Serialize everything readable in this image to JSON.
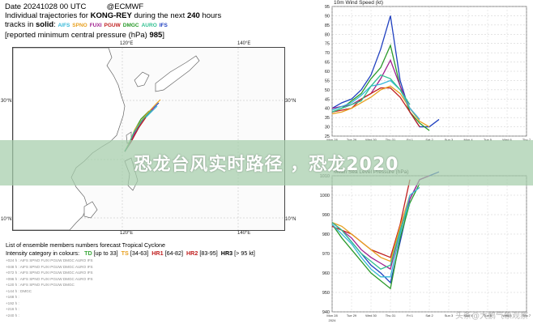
{
  "header": {
    "line1": "Date 20241028 00 UTC",
    "line1_org": "@ECMWF",
    "line2_prefix": "Individual trajectories for",
    "line2_storm": "KONG-REY",
    "line2_mid": "during the next",
    "line2_hours": "240",
    "line2_suffix": "hours",
    "line3_prefix": "tracks in",
    "line3_solid": "solid",
    "line3_suffix": ":",
    "models": [
      {
        "name": "AIFS",
        "color": "#36b8d8"
      },
      {
        "name": "SPNO",
        "color": "#e8a020"
      },
      {
        "name": "FUXI",
        "color": "#a0208f"
      },
      {
        "name": "PGUW",
        "color": "#c02020"
      },
      {
        "name": "DMGC",
        "color": "#2a9a2a"
      },
      {
        "name": "AURO",
        "color": "#30c090"
      },
      {
        "name": "IFS",
        "color": "#2040c0"
      }
    ],
    "line4_prefix": "[reported minimum central pressure (hPa)",
    "line4_value": "985",
    "line4_suffix": "]"
  },
  "map": {
    "lon_labels": [
      "120°E",
      "140°E",
      "120°E",
      "140°E"
    ],
    "lat_labels": [
      "30°N",
      "10°N",
      "30°N",
      "10°N"
    ],
    "colors": {
      "land": "#ffffff",
      "coast": "#666666",
      "grid": "#aaaaaa"
    }
  },
  "footer": {
    "line1": "List of ensemble members numbers forecast Tropical Cyclone",
    "line2_prefix": "Intensity category in colours:",
    "categories": [
      {
        "label": "TD",
        "range": "[up to 33]",
        "color": "#3aa83a"
      },
      {
        "label": "TS",
        "range": "[34-63]",
        "color": "#e8a020"
      },
      {
        "label": "HR1",
        "range": "[64-82]",
        "color": "#c02020"
      },
      {
        "label": "HR2",
        "range": "[83-95]",
        "color": "#c02020"
      },
      {
        "label": "HR3",
        "range": "[> 95 kt]",
        "color": "#000000"
      }
    ],
    "legend_rows": [
      "+024 h : AIFS SPNO FUXI PGUW DMGC AURO IFS",
      "+048 h : AIFS SPNO FUXI PGUW DMGC AURO IFS",
      "+072 h : AIFS SPNO FUXI PGUW DMGC AURO IFS",
      "+096 h : AIFS SPNO FUXI PGUW DMGC AURO IFS",
      "+120 h : AIFS SPNO FUXI PGUW DMGC",
      "+144 h : DMGC",
      "+168 h :",
      "+192 h :",
      "+216 h :",
      "+240 h :"
    ]
  },
  "banner": {
    "text": "恐龙台风实时路径 ，恐龙2020"
  },
  "watermark": {
    "text": "头条@大鹏气象观察"
  },
  "chart_data": [
    {
      "type": "line",
      "title": "10m Wind Speed (kt)",
      "ylim": [
        25,
        95
      ],
      "yticks": [
        25,
        30,
        35,
        40,
        45,
        50,
        55,
        60,
        65,
        70,
        75,
        80,
        85,
        90,
        95
      ],
      "xlim": [
        0,
        10
      ],
      "xticks": [
        "Mon 28",
        "Tue 29",
        "Wed 30",
        "Thu 31",
        "Fri 1",
        "Sat 2",
        "Sun 3",
        "Mon 4",
        "Tue 5",
        "Wed 6",
        "Thu 7"
      ],
      "series": [
        {
          "color": "#2040c0",
          "x": [
            0,
            0.5,
            1,
            1.5,
            2,
            2.5,
            3,
            3.5,
            4,
            4.5,
            5,
            5.5
          ],
          "y": [
            40,
            43,
            45,
            50,
            58,
            72,
            90,
            55,
            38,
            30,
            30,
            34
          ]
        },
        {
          "color": "#2a9a2a",
          "x": [
            0,
            0.5,
            1,
            1.5,
            2,
            2.5,
            3,
            3.5,
            4,
            4.5,
            5
          ],
          "y": [
            38,
            40,
            44,
            48,
            56,
            62,
            74,
            52,
            38,
            32,
            28
          ]
        },
        {
          "color": "#a0208f",
          "x": [
            0,
            0.5,
            1,
            1.5,
            2,
            2.5,
            3,
            3.5,
            4,
            4.5
          ],
          "y": [
            40,
            41,
            42,
            45,
            48,
            56,
            66,
            52,
            40,
            34
          ]
        },
        {
          "color": "#c02020",
          "x": [
            0,
            0.5,
            1,
            1.5,
            2,
            2.5,
            3,
            3.5,
            4,
            4.5
          ],
          "y": [
            38,
            39,
            40,
            45,
            48,
            51,
            51,
            46,
            38,
            30
          ]
        },
        {
          "color": "#e8a020",
          "x": [
            0,
            0.5,
            1,
            1.5,
            2,
            2.5,
            3,
            3.5,
            4,
            4.5,
            5
          ],
          "y": [
            37,
            38,
            40,
            43,
            46,
            50,
            52,
            48,
            40,
            33,
            30
          ]
        },
        {
          "color": "#36b8d8",
          "x": [
            0,
            0.5,
            1,
            1.5,
            2,
            2.5,
            3,
            3.5,
            4,
            4.5
          ],
          "y": [
            39,
            41,
            43,
            47,
            52,
            53,
            55,
            50,
            40,
            34
          ]
        },
        {
          "color": "#30c090",
          "x": [
            0,
            0.5,
            1,
            1.5,
            2,
            2.5,
            3,
            3.5,
            4
          ],
          "y": [
            38,
            40,
            42,
            44,
            52,
            58,
            56,
            50,
            42
          ]
        }
      ]
    },
    {
      "type": "line",
      "title": "Mean Sea Level Pressure (hPa)",
      "ylim": [
        940,
        1010
      ],
      "yticks": [
        940,
        950,
        960,
        970,
        980,
        990,
        1000,
        1010
      ],
      "xlim": [
        0,
        10
      ],
      "xticks": [
        "Mon 28",
        "Tue 29",
        "Wed 30",
        "Thu 31",
        "Fri 1",
        "Sat 2",
        "Sun 3",
        "Mon 4",
        "Tue 5",
        "Wed 6",
        "Thu 7"
      ],
      "x_note": "2024",
      "series": [
        {
          "color": "#2040c0",
          "x": [
            0,
            0.5,
            1,
            1.5,
            2,
            2.5,
            3,
            3.5,
            4,
            4.5,
            5,
            5.5
          ],
          "y": [
            986,
            982,
            976,
            970,
            964,
            960,
            955,
            976,
            998,
            1008,
            1010,
            1012
          ]
        },
        {
          "color": "#2a9a2a",
          "x": [
            0,
            0.5,
            1,
            1.5,
            2,
            2.5,
            3,
            3.5,
            4,
            4.5
          ],
          "y": [
            985,
            978,
            972,
            966,
            960,
            956,
            952,
            978,
            996,
            1006
          ]
        },
        {
          "color": "#a0208f",
          "x": [
            0,
            0.5,
            1,
            1.5,
            2,
            2.5,
            3,
            3.5,
            4,
            4.5,
            5
          ],
          "y": [
            986,
            982,
            978,
            972,
            968,
            965,
            962,
            982,
            998,
            1008,
            1010
          ]
        },
        {
          "color": "#c02020",
          "x": [
            0,
            0.5,
            1,
            1.5,
            2,
            2.5,
            3,
            3.5,
            4
          ],
          "y": [
            984,
            982,
            980,
            976,
            972,
            970,
            968,
            985,
            1008
          ]
        },
        {
          "color": "#e8a020",
          "x": [
            0,
            0.5,
            1,
            1.5,
            2,
            2.5,
            3,
            3.5,
            4
          ],
          "y": [
            986,
            984,
            980,
            976,
            972,
            968,
            966,
            984,
            1000
          ]
        },
        {
          "color": "#36b8d8",
          "x": [
            0,
            0.5,
            1,
            1.5,
            2,
            2.5,
            3,
            3.5,
            4,
            4.5
          ],
          "y": [
            985,
            980,
            975,
            968,
            962,
            958,
            958,
            980,
            1000,
            1004
          ]
        },
        {
          "color": "#30c090",
          "x": [
            0,
            0.5,
            1,
            1.5,
            2,
            2.5,
            3,
            3.5,
            4
          ],
          "y": [
            986,
            982,
            976,
            970,
            966,
            962,
            964,
            982,
            996
          ]
        }
      ]
    }
  ]
}
